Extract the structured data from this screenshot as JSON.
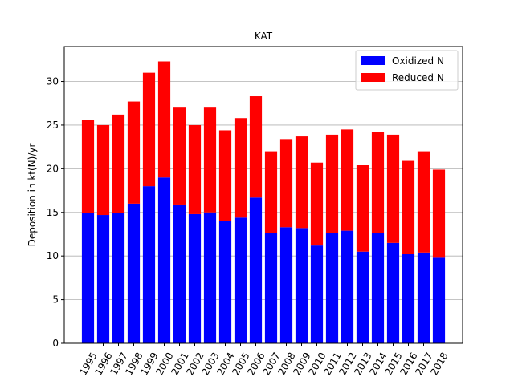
{
  "chart_data": {
    "type": "bar",
    "stacked": true,
    "title": "KAT",
    "xlabel": "",
    "ylabel": "Deposition in kt(N)/yr",
    "ylim": [
      0,
      34
    ],
    "yticks": [
      0,
      5,
      10,
      15,
      20,
      25,
      30
    ],
    "grid": "y",
    "legend_position": "top-right",
    "categories": [
      "1995",
      "1996",
      "1997",
      "1998",
      "1999",
      "2000",
      "2001",
      "2002",
      "2003",
      "2004",
      "2005",
      "2006",
      "2007",
      "2008",
      "2009",
      "2010",
      "2011",
      "2012",
      "2013",
      "2014",
      "2015",
      "2016",
      "2017",
      "2018"
    ],
    "series": [
      {
        "name": "Oxidized N",
        "color": "#0000ff",
        "values": [
          14.9,
          14.7,
          14.9,
          16.0,
          18.0,
          19.0,
          15.9,
          14.8,
          15.0,
          14.0,
          14.4,
          16.7,
          12.6,
          13.3,
          13.2,
          11.2,
          12.6,
          12.9,
          10.5,
          12.6,
          11.5,
          10.2,
          10.4,
          9.8
        ]
      },
      {
        "name": "Reduced N",
        "color": "#ff0000",
        "values": [
          10.7,
          10.3,
          11.3,
          11.7,
          13.0,
          13.3,
          11.1,
          10.2,
          12.0,
          10.4,
          11.4,
          11.6,
          9.4,
          10.1,
          10.5,
          9.5,
          11.3,
          11.6,
          9.9,
          11.6,
          12.4,
          10.7,
          11.6,
          10.1
        ]
      }
    ]
  }
}
